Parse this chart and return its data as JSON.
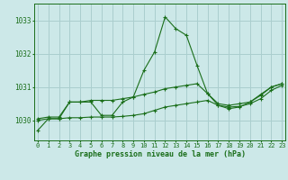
{
  "title": "Graphe pression niveau de la mer (hPa)",
  "background_color": "#cce8e8",
  "grid_color": "#aacece",
  "line_color": "#1a6e1a",
  "x_ticks": [
    0,
    1,
    2,
    3,
    4,
    5,
    6,
    7,
    8,
    9,
    10,
    11,
    12,
    13,
    14,
    15,
    16,
    17,
    18,
    19,
    20,
    21,
    22,
    23
  ],
  "y_ticks": [
    1030,
    1031,
    1032,
    1033
  ],
  "ylim": [
    1029.4,
    1033.5
  ],
  "xlim": [
    -0.3,
    23.3
  ],
  "series1": [
    1029.7,
    1030.05,
    1030.05,
    1030.55,
    1030.55,
    1030.55,
    1030.15,
    1030.15,
    1030.55,
    1030.7,
    1031.5,
    1032.05,
    1033.1,
    1032.75,
    1032.55,
    1031.65,
    1030.8,
    1030.45,
    1030.35,
    1030.4,
    1030.55,
    1030.75,
    1031.0,
    1031.1
  ],
  "series2": [
    1030.05,
    1030.1,
    1030.1,
    1030.55,
    1030.55,
    1030.6,
    1030.6,
    1030.6,
    1030.65,
    1030.7,
    1030.78,
    1030.85,
    1030.95,
    1031.0,
    1031.05,
    1031.1,
    1030.8,
    1030.5,
    1030.45,
    1030.5,
    1030.55,
    1030.78,
    1031.0,
    1031.1
  ],
  "series3": [
    1030.0,
    1030.05,
    1030.05,
    1030.08,
    1030.08,
    1030.1,
    1030.1,
    1030.1,
    1030.12,
    1030.15,
    1030.2,
    1030.3,
    1030.4,
    1030.45,
    1030.5,
    1030.55,
    1030.6,
    1030.45,
    1030.4,
    1030.42,
    1030.5,
    1030.65,
    1030.9,
    1031.05
  ]
}
